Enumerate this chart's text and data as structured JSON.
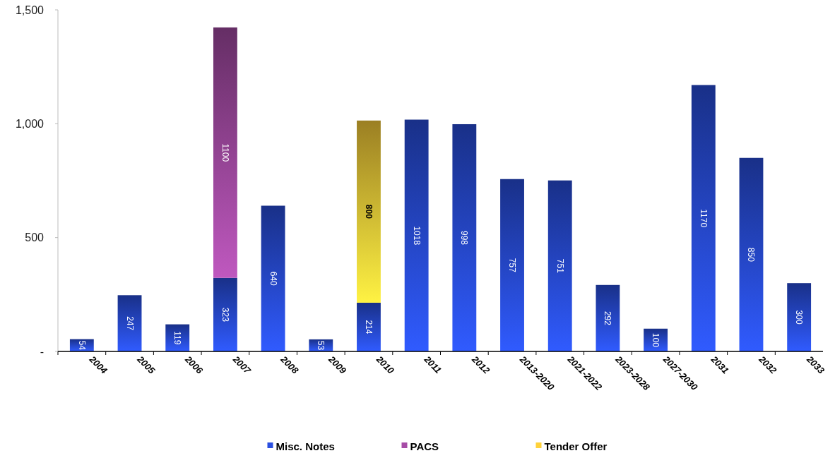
{
  "chart_data": {
    "type": "bar",
    "stacked": true,
    "data_labels": true,
    "legend": "bottom",
    "categories": [
      "2004",
      "2005",
      "2006",
      "2007",
      "2008",
      "2009",
      "2010",
      "2011",
      "2012",
      "2013-2020",
      "2021-2022",
      "2023-2028",
      "2027-2030",
      "2031",
      "2032",
      "2033"
    ],
    "series": [
      {
        "name": "Misc. Notes",
        "color": "#2a4fe0",
        "values": [
          54,
          247,
          119,
          323,
          640,
          53,
          214,
          1018,
          998,
          757,
          751,
          292,
          100,
          1170,
          850,
          300
        ]
      },
      {
        "name": "PACS",
        "color": "#a64ca6",
        "values": [
          null,
          null,
          null,
          1100,
          null,
          null,
          null,
          null,
          null,
          null,
          null,
          null,
          null,
          null,
          null,
          null
        ]
      },
      {
        "name": "Tender Offer",
        "color": "#ffd23a",
        "values": [
          null,
          null,
          null,
          null,
          null,
          null,
          800,
          null,
          null,
          null,
          null,
          null,
          null,
          null,
          null,
          null
        ]
      }
    ],
    "ylim": [
      0,
      1500
    ],
    "yticks": [
      {
        "value": 0,
        "label": "-"
      },
      {
        "value": 500,
        "label": "500"
      },
      {
        "value": 1000,
        "label": "1,000"
      },
      {
        "value": 1500,
        "label": "1,500"
      }
    ]
  }
}
